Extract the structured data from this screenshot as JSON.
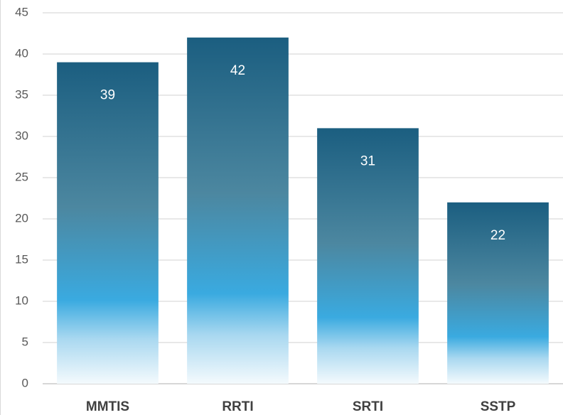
{
  "chart_data": {
    "type": "bar",
    "categories": [
      "MMTIS",
      "RRTI",
      "SRTI",
      "SSTP"
    ],
    "values": [
      39,
      42,
      31,
      22
    ],
    "color": "#1b5e80",
    "ylim": [
      0,
      45
    ],
    "yticks": [
      0,
      5,
      10,
      15,
      20,
      25,
      30,
      35,
      40,
      45
    ],
    "grid": true
  }
}
